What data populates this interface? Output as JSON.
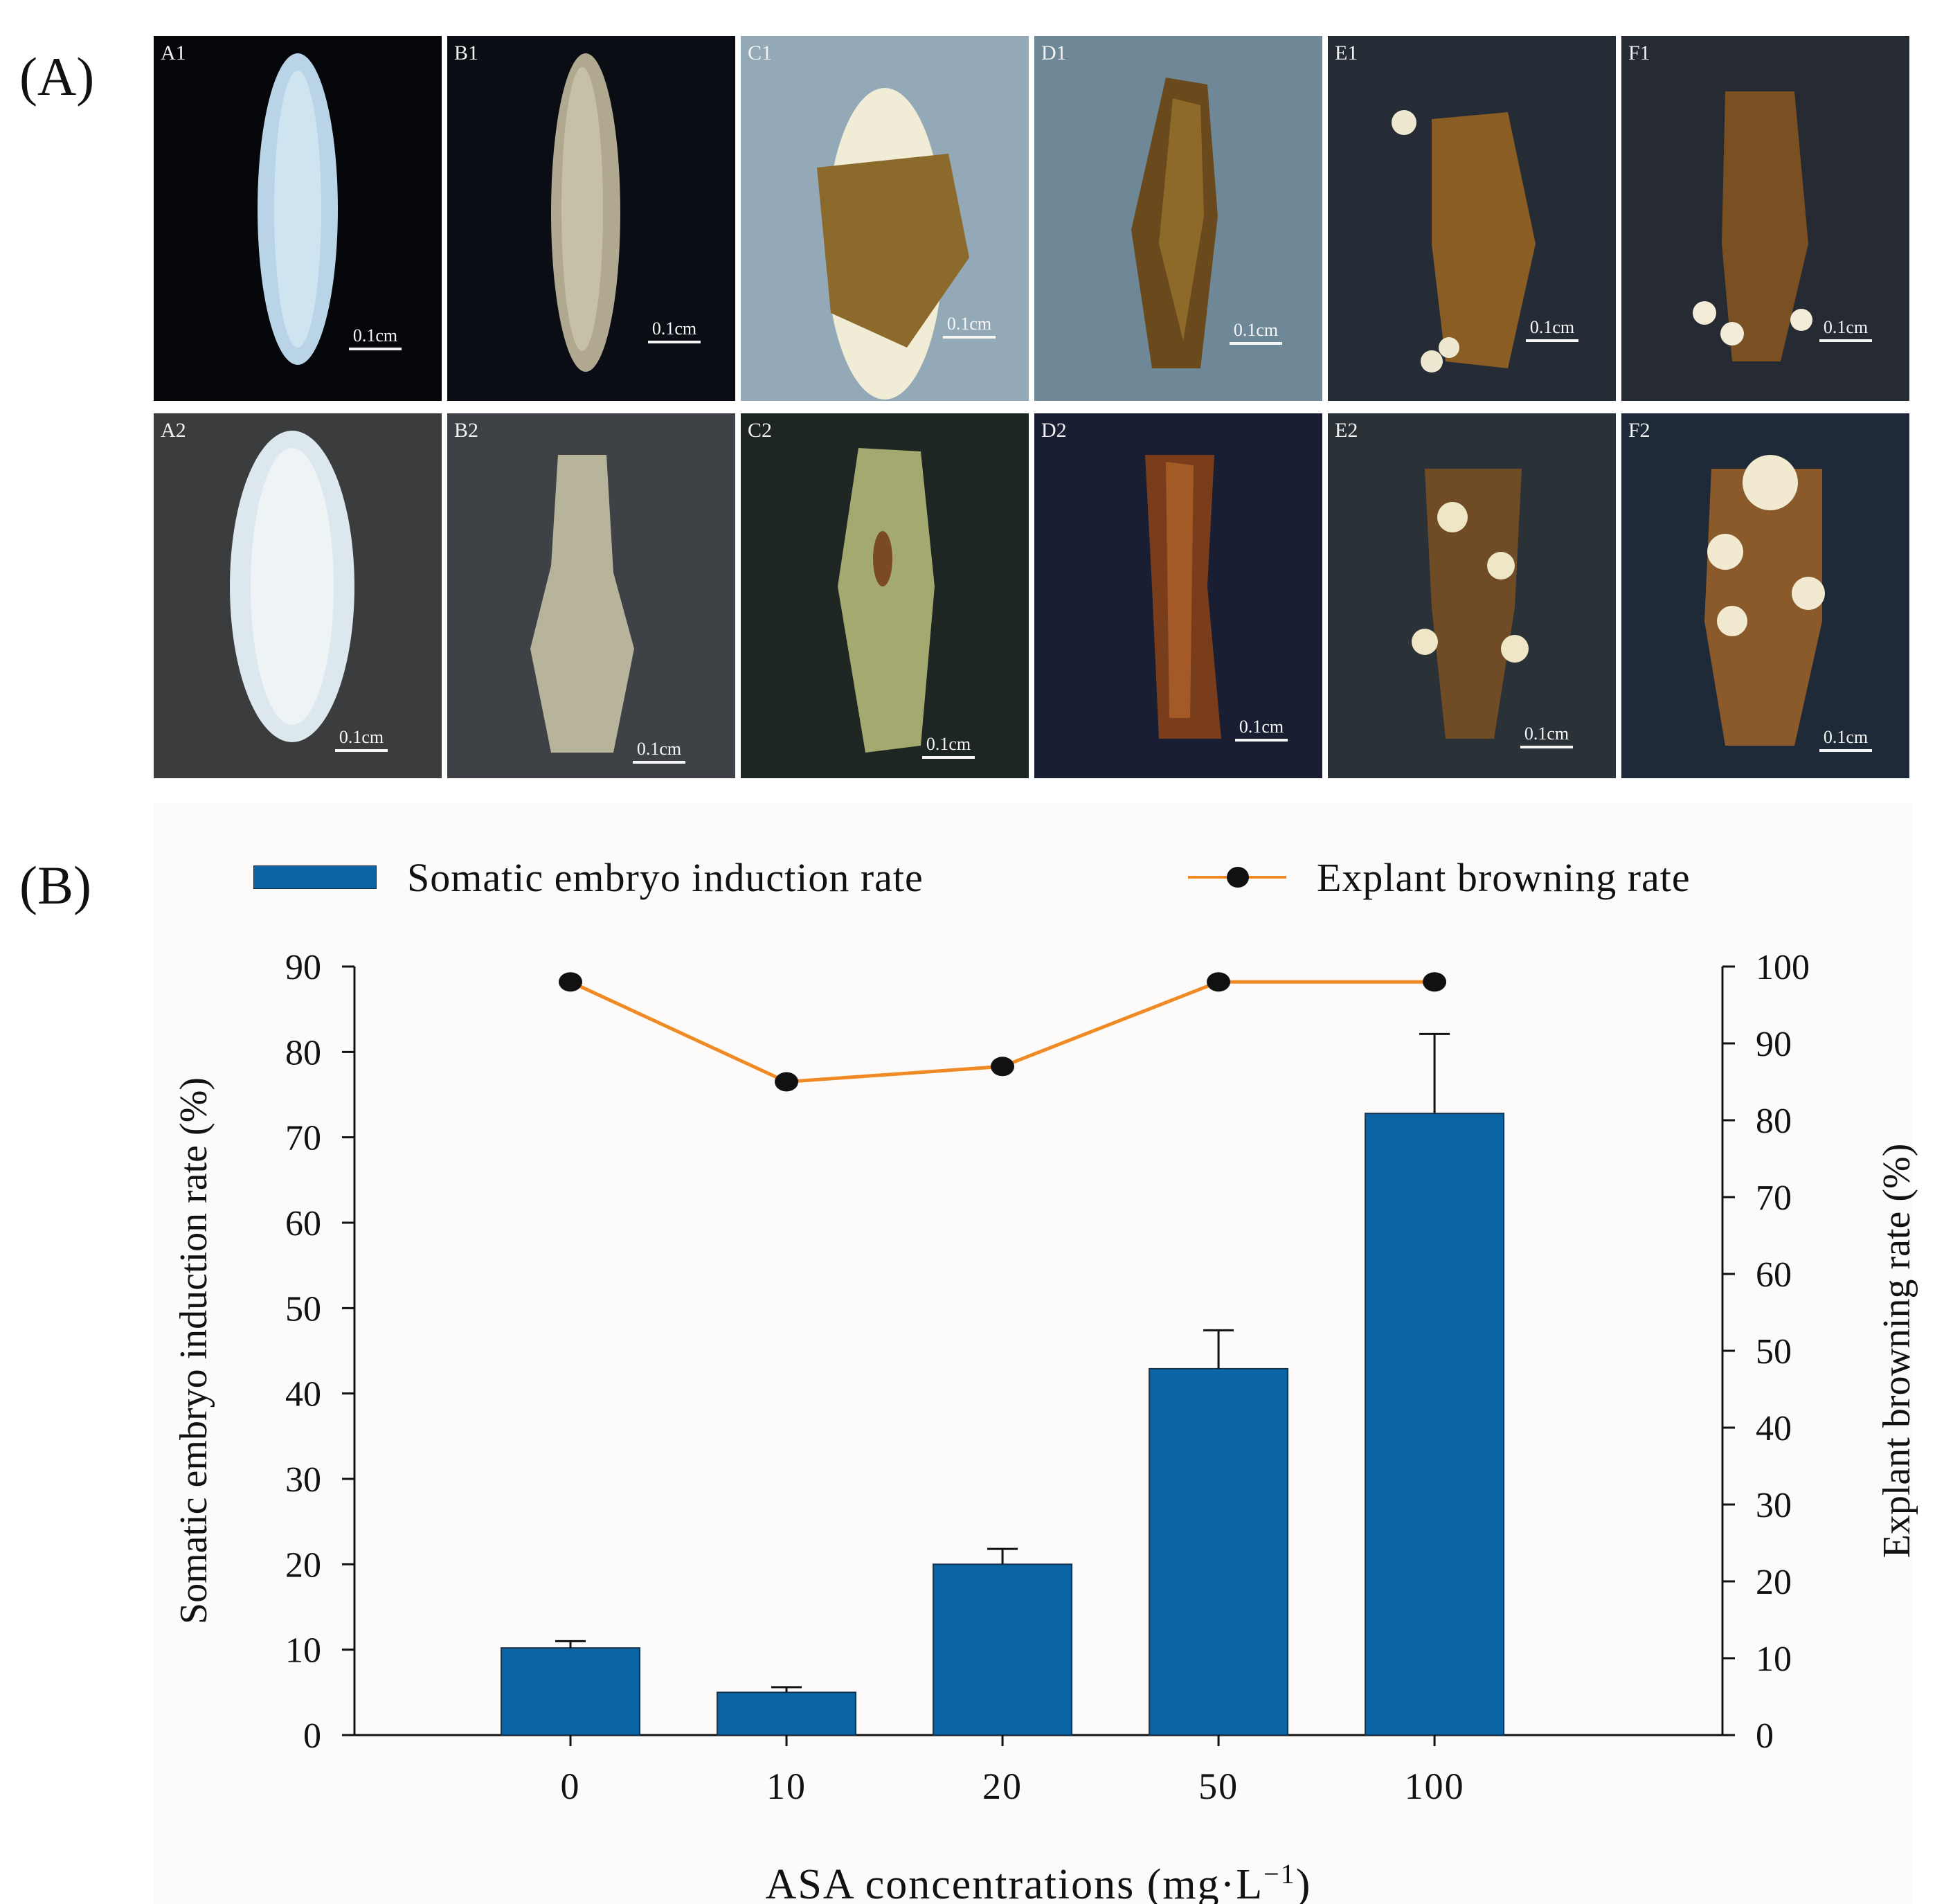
{
  "figure": {
    "panel_a_label": "(A)",
    "panel_b_label": "(B)"
  },
  "photos": [
    {
      "id": "A1",
      "scale": "0.1cm",
      "subject": "white-leaf-dark-bg"
    },
    {
      "id": "B1",
      "scale": "0.1cm",
      "subject": "pale-leaf-dark-bg"
    },
    {
      "id": "C1",
      "scale": "0.1cm",
      "subject": "partially-browned-leaf"
    },
    {
      "id": "D1",
      "scale": "0.1cm",
      "subject": "browned-explant"
    },
    {
      "id": "E1",
      "scale": "0.1cm",
      "subject": "explant-with-embryos"
    },
    {
      "id": "F1",
      "scale": "0.1cm",
      "subject": "explant-with-embryos"
    },
    {
      "id": "A2",
      "scale": "0.1cm",
      "subject": "white-leaf-grainy-bg"
    },
    {
      "id": "B2",
      "scale": "0.1cm",
      "subject": "pale-leaf"
    },
    {
      "id": "C2",
      "scale": "0.1cm",
      "subject": "green-leaf-spots"
    },
    {
      "id": "D2",
      "scale": "0.1cm",
      "subject": "browned-curled-explant"
    },
    {
      "id": "E2",
      "scale": "0.1cm",
      "subject": "explant-many-embryos"
    },
    {
      "id": "F2",
      "scale": "0.1cm",
      "subject": "explant-many-embryos"
    }
  ],
  "colors": {
    "bar": "#0b64a4",
    "line": "#f08a24",
    "marker": "#111111"
  },
  "chart_data": {
    "type": "bar",
    "categories": [
      "0",
      "10",
      "20",
      "50",
      "100"
    ],
    "series": [
      {
        "name": "Somatic embryo induction rate",
        "type": "bar",
        "axis": "left",
        "values": [
          10.2,
          5.0,
          20.0,
          42.9,
          72.8
        ],
        "errors": [
          0.8,
          0.6,
          1.8,
          4.5,
          9.3
        ]
      },
      {
        "name": "Explant browning rate",
        "type": "line",
        "axis": "right",
        "values": [
          98,
          85,
          87,
          98,
          98
        ]
      }
    ],
    "xlabel": "ASA concentrations (mg·L",
    "xlabel_sup": "−1",
    "xlabel_tail": ")",
    "ylabel_left": "Somatic embryo induction rate (%)",
    "ylabel_right": "Explant browning rate (%)",
    "ylim_left": [
      0,
      90
    ],
    "ylim_right": [
      0,
      100
    ],
    "yticks_left": [
      "0",
      "10",
      "20",
      "30",
      "40",
      "50",
      "60",
      "70",
      "80",
      "90"
    ],
    "yticks_right": [
      "0",
      "10",
      "20",
      "30",
      "40",
      "50",
      "60",
      "70",
      "80",
      "90",
      "100"
    ],
    "legend_position": "top",
    "grid": false
  }
}
